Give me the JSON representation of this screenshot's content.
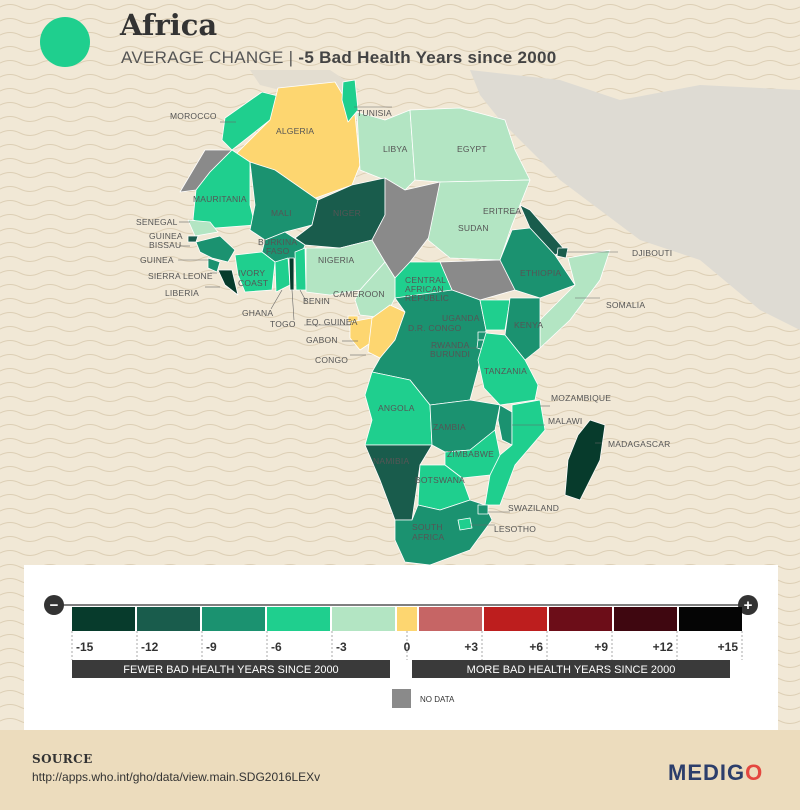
{
  "header": {
    "title": "Africa",
    "subtitle_prefix": "AVERAGE CHANGE | ",
    "subtitle_value": "-5 Bad Health Years since 2000",
    "indicator_color": "#1fcf8e"
  },
  "countries": {
    "morocco": "MOROCCO",
    "algeria": "ALGERIA",
    "tunisia": "TUNISIA",
    "libya": "LIBYA",
    "egypt": "EGYPT",
    "mauritania": "MAURITANIA",
    "mali": "MALI",
    "niger": "NIGER",
    "senegal": "SENEGAL",
    "guinea_bissau_1": "GUINEA",
    "guinea_bissau_2": "BISSAU",
    "guinea": "GUINEA",
    "sierra_leone": "SIERRA LEONE",
    "liberia": "LIBERIA",
    "burkina_1": "BURKINA",
    "burkina_2": "FASO",
    "ivory_1": "IVORY",
    "ivory_2": "COAST",
    "ghana": "GHANA",
    "togo": "TOGO",
    "benin": "BENIN",
    "nigeria": "NIGERIA",
    "cameroon": "CAMEROON",
    "eq_guinea": "EQ. GUINEA",
    "gabon": "GABON",
    "congo": "CONGO",
    "car_1": "CENTRAL",
    "car_2": "AFRICAN",
    "car_3": "REPUBLIC",
    "sudan": "SUDAN",
    "eritrea": "ERITREA",
    "djibouti": "DJIBOUTI",
    "ethiopia": "ETHIOPIA",
    "somalia": "SOMALIA",
    "uganda": "UGANDA",
    "kenya": "KENYA",
    "drc": "D.R. CONGO",
    "rwanda": "RWANDA",
    "burundi": "BURUNDI",
    "tanzania": "TANZANIA",
    "angola": "ANGOLA",
    "zambia": "ZAMBIA",
    "malawi": "MALAWI",
    "mozambique": "MOZAMBIQUE",
    "madagascar": "MADAGASCAR",
    "zimbabwe": "ZIMBABWE",
    "namibia": "NAMIBIA",
    "botswana": "BOTSWANA",
    "swaziland": "SWAZILAND",
    "lesotho": "LESOTHO",
    "south_africa_1": "SOUTH",
    "south_africa_2": "AFRICA"
  },
  "legend": {
    "minus_symbol": "−",
    "plus_symbol": "+",
    "bins": [
      {
        "label": "-15",
        "color": "#073b2c"
      },
      {
        "label": "-12",
        "color": "#195c4c"
      },
      {
        "label": "-9",
        "color": "#1b9270"
      },
      {
        "label": "-6",
        "color": "#1fcf8e"
      },
      {
        "label": "-3",
        "color": "#b3e5c3"
      },
      {
        "label": "0",
        "color": "#fdd670"
      },
      {
        "label": "+3",
        "color": "#c66565"
      },
      {
        "label": "+6",
        "color": "#bd1e1e"
      },
      {
        "label": "+9",
        "color": "#6c0d18"
      },
      {
        "label": "+12",
        "color": "#3f0710"
      },
      {
        "label": "+15",
        "color": "#050505"
      }
    ],
    "fewer_label": "FEWER BAD HEALTH YEARS SINCE 2000",
    "more_label": "MORE BAD HEALTH YEARS SINCE 2000",
    "no_data_label": "NO DATA",
    "no_data_color": "#8a8a8a"
  },
  "footer": {
    "source_label": "SOURCE",
    "source_url": "http://apps.who.int/gho/data/view.main.SDG2016LEXv",
    "brand_prefix": "MEDIG",
    "brand_suffix": "O"
  }
}
